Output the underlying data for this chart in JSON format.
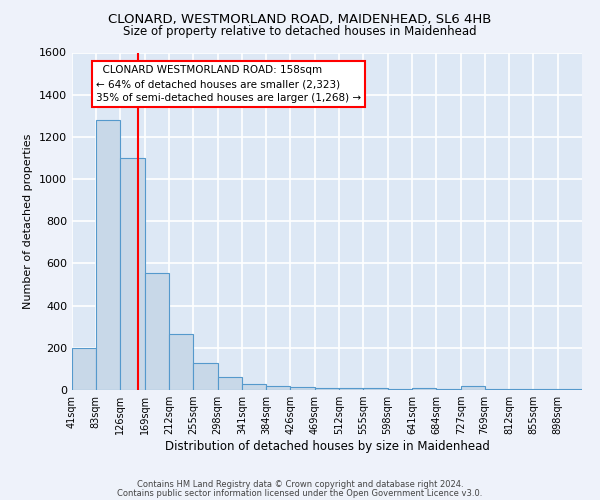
{
  "title": "CLONARD, WESTMORLAND ROAD, MAIDENHEAD, SL6 4HB",
  "subtitle": "Size of property relative to detached houses in Maidenhead",
  "xlabel": "Distribution of detached houses by size in Maidenhead",
  "ylabel": "Number of detached properties",
  "footer1": "Contains HM Land Registry data © Crown copyright and database right 2024.",
  "footer2": "Contains public sector information licensed under the Open Government Licence v3.0.",
  "annotation_title": "CLONARD WESTMORLAND ROAD: 158sqm",
  "annotation_line1": "← 64% of detached houses are smaller (2,323)",
  "annotation_line2": "35% of semi-detached houses are larger (1,268) →",
  "bar_color": "#c8d8e8",
  "bar_edge_color": "#5599cc",
  "bg_color": "#dde8f5",
  "grid_color": "#ffffff",
  "fig_bg_color": "#eef2fa",
  "red_line_x": 158,
  "categories": [
    "41sqm",
    "83sqm",
    "126sqm",
    "169sqm",
    "212sqm",
    "255sqm",
    "298sqm",
    "341sqm",
    "384sqm",
    "426sqm",
    "469sqm",
    "512sqm",
    "555sqm",
    "598sqm",
    "641sqm",
    "684sqm",
    "727sqm",
    "769sqm",
    "812sqm",
    "855sqm",
    "898sqm"
  ],
  "bin_edges": [
    41,
    83,
    126,
    169,
    212,
    255,
    298,
    341,
    384,
    426,
    469,
    512,
    555,
    598,
    641,
    684,
    727,
    769,
    812,
    855,
    898,
    941
  ],
  "values": [
    200,
    1280,
    1100,
    555,
    265,
    130,
    60,
    30,
    20,
    15,
    10,
    10,
    10,
    5,
    10,
    5,
    20,
    5,
    5,
    5,
    5
  ],
  "ylim": [
    0,
    1600
  ],
  "yticks": [
    0,
    200,
    400,
    600,
    800,
    1000,
    1200,
    1400,
    1600
  ]
}
